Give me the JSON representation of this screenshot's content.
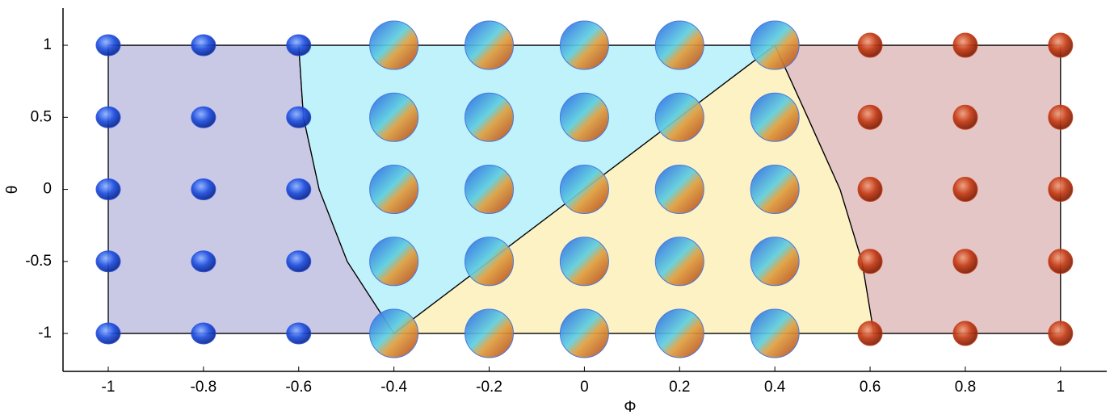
{
  "chart_data": {
    "type": "phase",
    "x_label": "Φ",
    "y_label": "θ",
    "xlim": [
      -1.095,
      1.097
    ],
    "ylim": [
      -1.263,
      1.258
    ],
    "xticks": [
      -1,
      -0.8,
      -0.6,
      -0.4,
      -0.2,
      0,
      0.2,
      0.4,
      0.6,
      0.8,
      1
    ],
    "yticks": [
      -1,
      -0.5,
      0,
      0.5,
      1
    ],
    "regions": [
      {
        "color": "#c9c9e6",
        "x": [
          -1,
          -1,
          -0.6,
          -0.59,
          -0.557,
          -0.498,
          -0.4
        ],
        "y": [
          -1,
          1,
          1,
          0.5,
          0,
          -0.5,
          -1
        ]
      },
      {
        "color": "#bff2fa",
        "x": [
          -0.6,
          0.4,
          -0.4,
          -0.498,
          -0.557,
          -0.59
        ],
        "y": [
          1,
          1,
          -1,
          -0.5,
          0,
          0.5
        ]
      },
      {
        "color": "#fcf2c4",
        "x": [
          -0.4,
          0.4,
          0.469,
          0.537,
          0.583,
          0.608
        ],
        "y": [
          -1,
          1,
          0.5,
          0,
          -0.5,
          -1
        ]
      },
      {
        "color": "#e4c6c6",
        "x": [
          0.4,
          1,
          1,
          0.608,
          0.583,
          0.537,
          0.469
        ],
        "y": [
          1,
          1,
          -1,
          -1,
          -0.5,
          0,
          0.5
        ]
      }
    ],
    "series": [
      {
        "color": "#1f4fe0",
        "x": [
          -1,
          -1,
          -1,
          -1,
          -1,
          -0.8,
          -0.8,
          -0.8,
          -0.8,
          -0.8,
          -0.6,
          -0.6,
          -0.6,
          -0.6,
          -0.6
        ],
        "y": [
          1,
          0.5,
          0,
          -0.5,
          -1,
          1,
          0.5,
          0,
          -0.5,
          -1,
          1,
          0.5,
          0,
          -0.5,
          -1
        ]
      },
      {
        "color": "#3a6fe0",
        "x": [
          -0.4,
          -0.4,
          -0.4,
          -0.4,
          -0.4,
          -0.2,
          -0.2,
          -0.2,
          -0.2,
          -0.2,
          0,
          0,
          0,
          0,
          0,
          0.2,
          0.2,
          0.2,
          0.2,
          0.2,
          0.4,
          0.4,
          0.4,
          0.4,
          0.4
        ],
        "y": [
          1,
          0.5,
          0,
          -0.5,
          -1,
          1,
          0.5,
          0,
          -0.5,
          -1,
          1,
          0.5,
          0,
          -0.5,
          -1,
          1,
          0.5,
          0,
          -0.5,
          -1,
          1,
          0.5,
          0,
          -0.5,
          -1
        ]
      },
      {
        "color": "#c43a14",
        "x": [
          0.6,
          0.6,
          0.6,
          0.6,
          0.6,
          0.8,
          0.8,
          0.8,
          0.8,
          0.8,
          1,
          1,
          1,
          1,
          1
        ],
        "y": [
          1,
          0.5,
          0,
          -0.5,
          -1,
          1,
          0.5,
          0,
          -0.5,
          -1,
          1,
          0.5,
          0,
          -0.5,
          -1
        ]
      }
    ]
  }
}
